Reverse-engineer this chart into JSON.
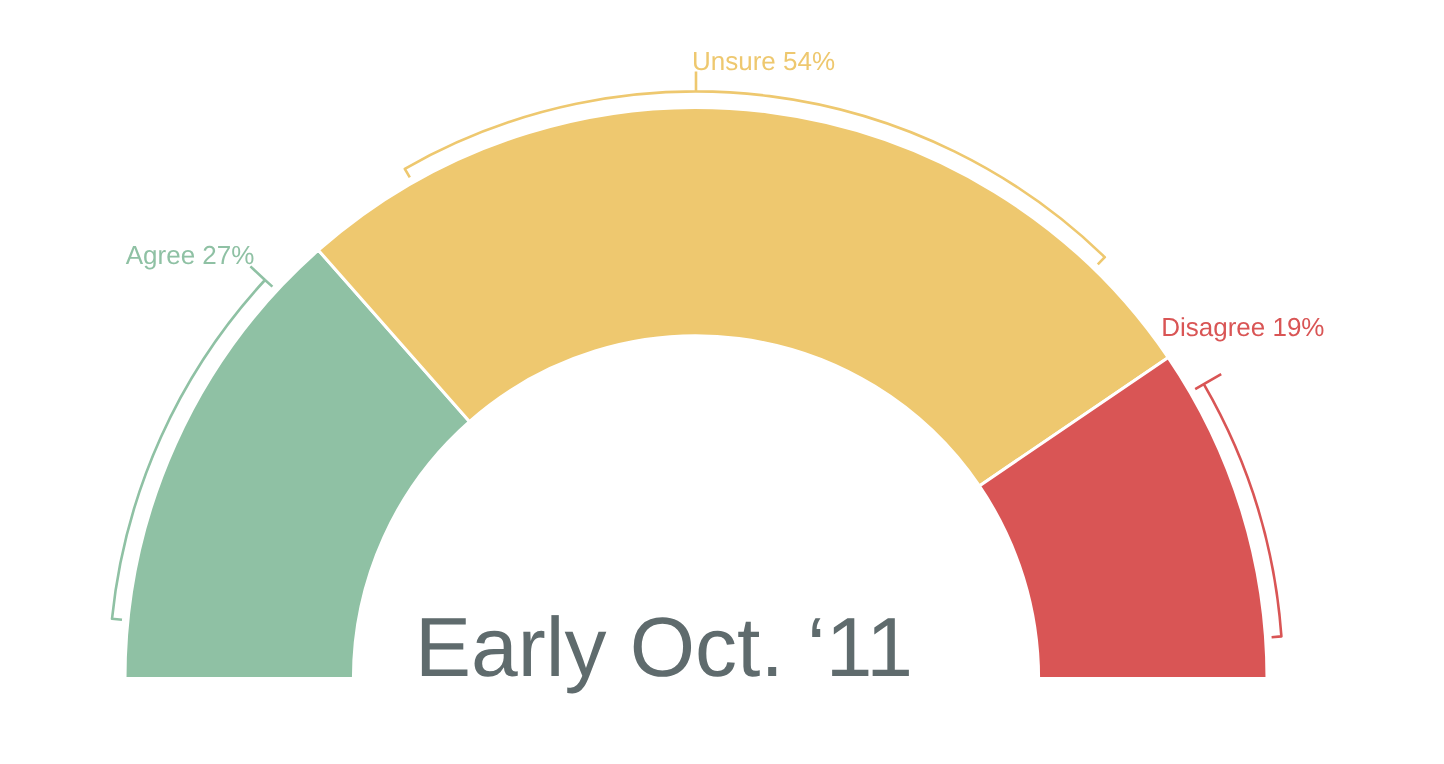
{
  "chart_data": {
    "type": "donut",
    "title": "Early Oct. ‘11",
    "categories": [
      "Agree",
      "Unsure",
      "Disagree"
    ],
    "values": [
      27,
      54,
      19
    ],
    "value_labels": [
      "27%",
      "54%",
      "19%"
    ],
    "colors": [
      "#8fc1a4",
      "#eec86f",
      "#d95555"
    ],
    "legend": false
  }
}
